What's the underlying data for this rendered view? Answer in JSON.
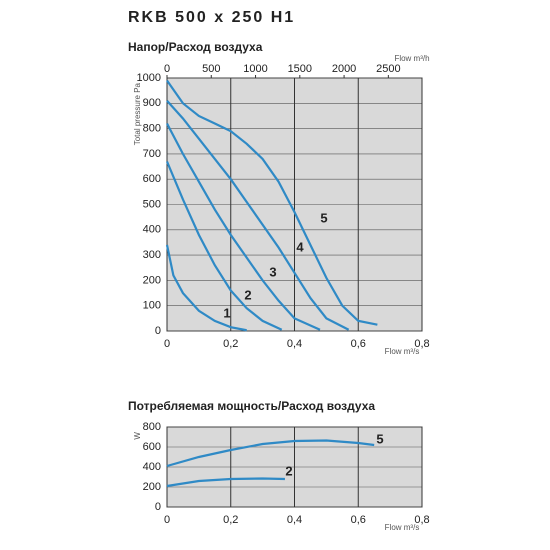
{
  "title": "RKB 500 x 250 H1",
  "chart_data": [
    {
      "type": "line",
      "title": "Напор/Расход воздуха",
      "xlabel": "Flow m³/s",
      "ylabel": "Total pressure Pa",
      "x2label": "Flow m³/h",
      "xlim": [
        0,
        0.8
      ],
      "ylim": [
        0,
        1000
      ],
      "xticks": [
        0,
        {
          "value": 0.2,
          "label": "0,2"
        },
        {
          "value": 0.4,
          "label": "0,4"
        },
        {
          "value": 0.6,
          "label": "0,6"
        },
        {
          "value": 0.8,
          "label": "0,8"
        }
      ],
      "yticks": [
        0,
        100,
        200,
        300,
        400,
        500,
        600,
        700,
        800,
        900,
        1000
      ],
      "x2lim": [
        0,
        2880
      ],
      "x2ticks": [
        0,
        500,
        1000,
        1500,
        2000,
        2500
      ],
      "grid": true,
      "color": "#2f8ac6",
      "series": [
        {
          "name": "1",
          "x": [
            0,
            0.02,
            0.05,
            0.1,
            0.15,
            0.2,
            0.25
          ],
          "values": [
            340,
            220,
            150,
            80,
            40,
            15,
            3
          ]
        },
        {
          "name": "2",
          "x": [
            0,
            0.05,
            0.1,
            0.15,
            0.2,
            0.25,
            0.3,
            0.36
          ],
          "values": [
            670,
            520,
            380,
            260,
            160,
            90,
            40,
            5
          ]
        },
        {
          "name": "3",
          "x": [
            0,
            0.05,
            0.1,
            0.15,
            0.2,
            0.25,
            0.3,
            0.35,
            0.4,
            0.48
          ],
          "values": [
            820,
            700,
            590,
            480,
            380,
            290,
            200,
            120,
            50,
            5
          ]
        },
        {
          "name": "4",
          "x": [
            0,
            0.05,
            0.1,
            0.15,
            0.2,
            0.25,
            0.3,
            0.35,
            0.4,
            0.45,
            0.5,
            0.57
          ],
          "values": [
            910,
            840,
            760,
            680,
            600,
            510,
            420,
            330,
            230,
            130,
            50,
            5
          ]
        },
        {
          "name": "5",
          "x": [
            0,
            0.05,
            0.1,
            0.15,
            0.2,
            0.25,
            0.3,
            0.35,
            0.4,
            0.45,
            0.5,
            0.55,
            0.6,
            0.66
          ],
          "values": [
            990,
            900,
            850,
            820,
            790,
            740,
            680,
            590,
            470,
            340,
            210,
            100,
            40,
            25
          ]
        }
      ]
    },
    {
      "type": "line",
      "title": "Потребляемая мощность/Расход воздуха",
      "xlabel": "Flow m³/s",
      "ylabel": "W",
      "xlim": [
        0,
        0.8
      ],
      "ylim": [
        0,
        800
      ],
      "xticks": [
        0,
        {
          "value": 0.2,
          "label": "0,2"
        },
        {
          "value": 0.4,
          "label": "0,4"
        },
        {
          "value": 0.6,
          "label": "0,6"
        },
        {
          "value": 0.8,
          "label": "0,8"
        }
      ],
      "yticks": [
        0,
        200,
        400,
        600,
        800
      ],
      "grid": true,
      "color": "#2f8ac6",
      "series": [
        {
          "name": "5",
          "x": [
            0,
            0.1,
            0.2,
            0.3,
            0.4,
            0.5,
            0.6,
            0.65
          ],
          "values": [
            410,
            500,
            570,
            630,
            660,
            665,
            640,
            620
          ]
        },
        {
          "name": "2",
          "x": [
            0,
            0.1,
            0.2,
            0.3,
            0.37
          ],
          "values": [
            210,
            260,
            280,
            285,
            280
          ]
        }
      ]
    }
  ]
}
